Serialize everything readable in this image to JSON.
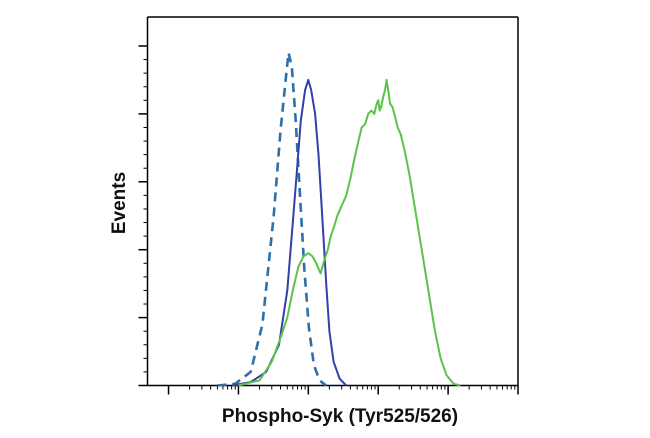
{
  "chart_data": {
    "type": "line",
    "title": "",
    "xlabel": "Phospho-Syk (Tyr525/526)",
    "ylabel": "Events",
    "x_scale": "log",
    "xlim": [
      0.5,
      100000
    ],
    "ylim": [
      0,
      100
    ],
    "grid": false,
    "legend": "none",
    "series": [
      {
        "color": "#2e6fa8",
        "dash": "dashed",
        "points": [
          [
            5,
            0
          ],
          [
            9,
            0.5
          ],
          [
            15,
            4
          ],
          [
            22,
            18
          ],
          [
            32,
            50
          ],
          [
            40,
            75
          ],
          [
            48,
            91
          ],
          [
            52,
            98
          ],
          [
            58,
            94
          ],
          [
            66,
            78
          ],
          [
            76,
            56
          ],
          [
            88,
            34
          ],
          [
            102,
            17
          ],
          [
            120,
            6
          ],
          [
            145,
            1.5
          ],
          [
            180,
            0
          ]
        ]
      },
      {
        "color": "#3240a8",
        "dash": "solid",
        "points": [
          [
            8,
            0
          ],
          [
            15,
            1
          ],
          [
            25,
            4
          ],
          [
            38,
            12
          ],
          [
            50,
            28
          ],
          [
            60,
            48
          ],
          [
            68,
            62
          ],
          [
            78,
            78
          ],
          [
            90,
            87
          ],
          [
            100,
            90
          ],
          [
            110,
            87
          ],
          [
            125,
            80
          ],
          [
            140,
            68
          ],
          [
            160,
            48
          ],
          [
            180,
            30
          ],
          [
            200,
            16
          ],
          [
            230,
            7
          ],
          [
            280,
            2
          ],
          [
            350,
            0
          ]
        ]
      },
      {
        "color": "#5bc24a",
        "dash": "solid",
        "points": [
          [
            10,
            0
          ],
          [
            20,
            1.5
          ],
          [
            30,
            7
          ],
          [
            40,
            14
          ],
          [
            50,
            20
          ],
          [
            60,
            28
          ],
          [
            72,
            35
          ],
          [
            85,
            38
          ],
          [
            100,
            39
          ],
          [
            115,
            38
          ],
          [
            130,
            36
          ],
          [
            150,
            33
          ],
          [
            170,
            37
          ],
          [
            190,
            40
          ],
          [
            210,
            44
          ],
          [
            235,
            47
          ],
          [
            260,
            50
          ],
          [
            300,
            53
          ],
          [
            350,
            56
          ],
          [
            400,
            61
          ],
          [
            460,
            67
          ],
          [
            520,
            72
          ],
          [
            580,
            76
          ],
          [
            650,
            77
          ],
          [
            720,
            80
          ],
          [
            800,
            81
          ],
          [
            880,
            80
          ],
          [
            950,
            83
          ],
          [
            1000,
            84
          ],
          [
            1050,
            81
          ],
          [
            1100,
            82
          ],
          [
            1180,
            85
          ],
          [
            1250,
            87
          ],
          [
            1320,
            90
          ],
          [
            1390,
            87
          ],
          [
            1480,
            83
          ],
          [
            1600,
            82
          ],
          [
            1750,
            79
          ],
          [
            1900,
            76
          ],
          [
            2100,
            74
          ],
          [
            2400,
            69
          ],
          [
            2800,
            62
          ],
          [
            3300,
            53
          ],
          [
            3900,
            44
          ],
          [
            4600,
            35
          ],
          [
            5500,
            25
          ],
          [
            6500,
            16
          ],
          [
            7800,
            8
          ],
          [
            9500,
            3
          ],
          [
            12000,
            0.5
          ],
          [
            15000,
            0
          ]
        ]
      }
    ]
  }
}
